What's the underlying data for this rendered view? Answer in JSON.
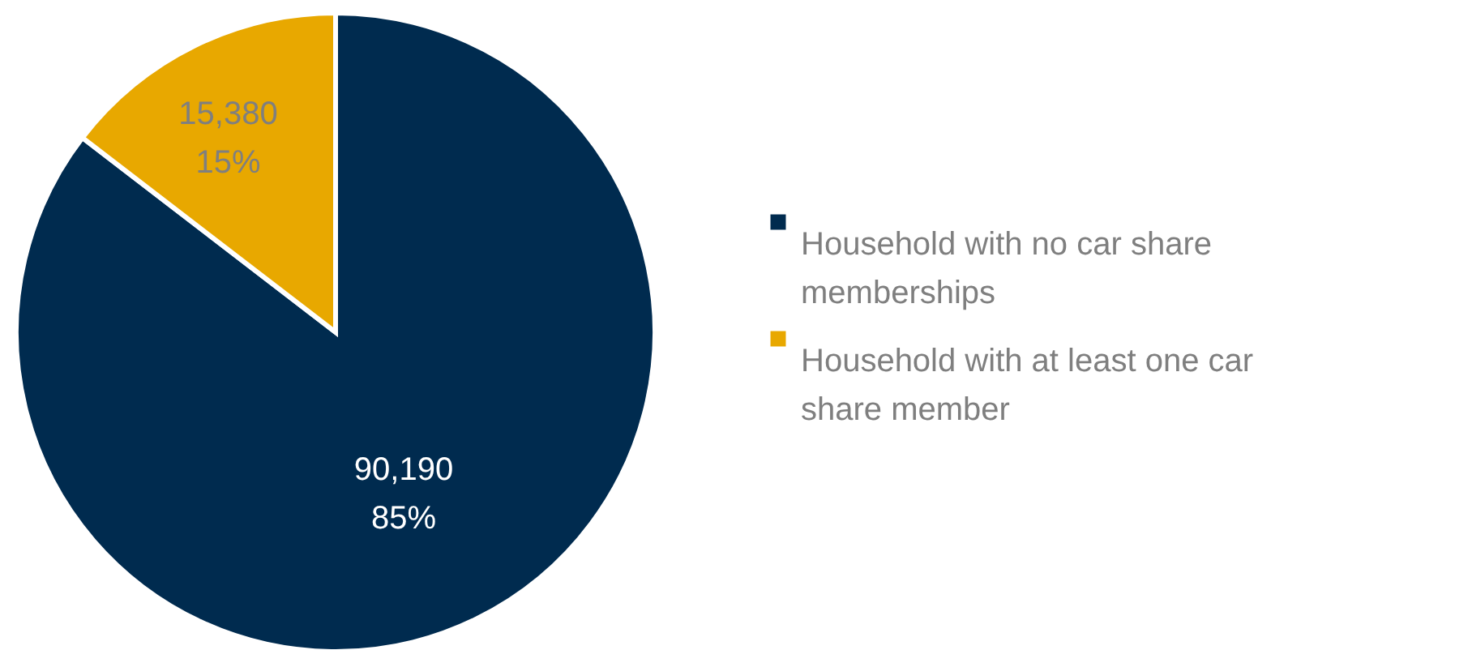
{
  "chart_data": {
    "type": "pie",
    "categories": [
      "Household with no car share memberships",
      "Household with at least one car share member"
    ],
    "values": [
      90190,
      15380
    ],
    "colors": [
      "#002b4f",
      "#e8a800"
    ],
    "value_labels": [
      "90,190\n85%",
      "15,380\n15%"
    ],
    "legend": "right"
  }
}
